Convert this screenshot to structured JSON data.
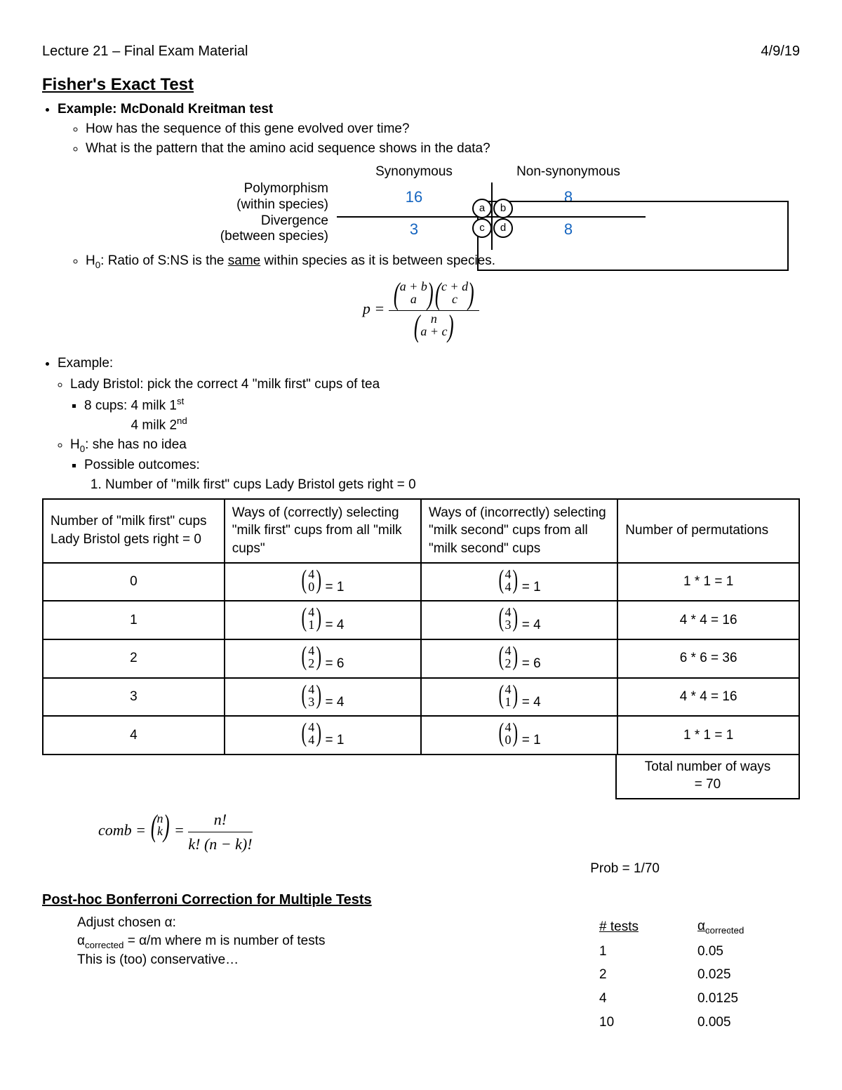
{
  "header": {
    "left": "Lecture 21 – Final Exam Material",
    "right": "4/9/19"
  },
  "title": "Fisher's Exact Test",
  "example1": {
    "heading": "Example: McDonald Kreitman test",
    "q1": "How has the sequence of this gene evolved over time?",
    "q2": "What is the pattern that the amino acid sequence shows in the data?",
    "col1": "Synonymous",
    "col2": "Non-synonymous",
    "row1a": "Polymorphism",
    "row1b": "(within species)",
    "row2a": "Divergence",
    "row2b": "(between species)",
    "vals": {
      "a": "16",
      "b": "8",
      "c": "3",
      "d": "8"
    },
    "labels": {
      "a": "a",
      "b": "b",
      "c": "c",
      "d": "d"
    },
    "h0_pre": "H",
    "h0_sub": "0",
    "h0_text": ": Ratio of S:NS is the ",
    "h0_same": "same",
    "h0_rest": " within species as it is between species.",
    "formula_p": "p =",
    "binom": {
      "ab_top": "a + b",
      "ab_bot": "a",
      "cd_top": "c + d",
      "cd_bot": "c",
      "n_top": "n",
      "n_bot": "a + c"
    },
    "value_color": "#1565c0"
  },
  "example2": {
    "heading": "Example:",
    "lady": "Lady Bristol: pick the correct 4 \"milk first\" cups of tea",
    "cups1": "8 cups:  4 milk 1",
    "cups1_sup": "st",
    "cups2": "4 milk 2",
    "cups2_sup": "nd",
    "h0": "H",
    "h0_sub": "0",
    "h0_text": ": she has no idea",
    "possible": "Possible outcomes:",
    "outcome1": "Number of \"milk first\" cups Lady Bristol gets right = 0",
    "headers": [
      "Number of \"milk first\" cups Lady Bristol gets right = 0",
      "Ways of (correctly) selecting \"milk first\" cups from all \"milk cups\"",
      "Ways of (incorrectly) selecting \"milk second\" cups from all \"milk second\" cups",
      "Number of permutations"
    ],
    "rows": [
      {
        "n": "0",
        "c1t": "4",
        "c1b": "0",
        "c1v": "1",
        "c2t": "4",
        "c2b": "4",
        "c2v": "1",
        "perm": "1 * 1 = 1"
      },
      {
        "n": "1",
        "c1t": "4",
        "c1b": "1",
        "c1v": "4",
        "c2t": "4",
        "c2b": "3",
        "c2v": "4",
        "perm": "4 * 4 = 16"
      },
      {
        "n": "2",
        "c1t": "4",
        "c1b": "2",
        "c1v": "6",
        "c2t": "4",
        "c2b": "2",
        "c2v": "6",
        "perm": "6 * 6 = 36"
      },
      {
        "n": "3",
        "c1t": "4",
        "c1b": "3",
        "c1v": "4",
        "c2t": "4",
        "c2b": "1",
        "c2v": "4",
        "perm": "4 * 4 = 16"
      },
      {
        "n": "4",
        "c1t": "4",
        "c1b": "4",
        "c1v": "1",
        "c2t": "4",
        "c2b": "0",
        "c2v": "1",
        "perm": "1 * 1 = 1"
      }
    ],
    "total_label": "Total number of ways",
    "total_value": "= 70",
    "comb_label": "comb =",
    "comb_nt": "n",
    "comb_nb": "k",
    "comb_num": "n!",
    "comb_den": "k! (n − k)!",
    "prob": "Prob = 1/70"
  },
  "bonferroni": {
    "heading": "Post-hoc Bonferroni Correction for Multiple Tests",
    "line1": "Adjust chosen α:",
    "line2_a": "α",
    "line2_sub": "corrected",
    "line2_b": " = α/m     where m is number of tests",
    "line3": "This is (too) conservative…",
    "col1": "# tests",
    "col2_a": "α",
    "col2_sub": "corrected",
    "rows": [
      {
        "n": "1",
        "a": "0.05"
      },
      {
        "n": "2",
        "a": "0.025"
      },
      {
        "n": "4",
        "a": "0.0125"
      },
      {
        "n": "10",
        "a": "0.005"
      }
    ]
  }
}
